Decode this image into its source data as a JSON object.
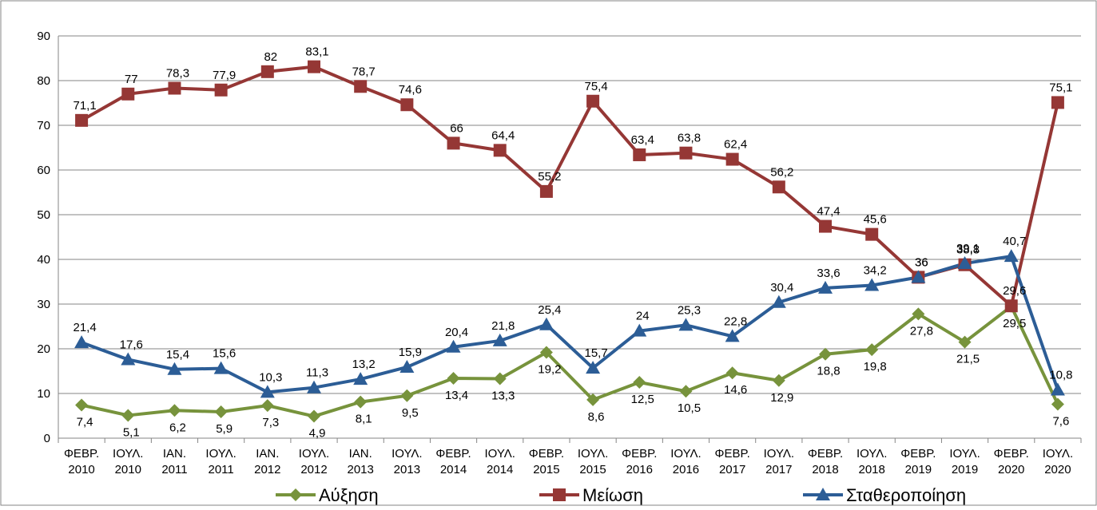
{
  "chart_data": {
    "type": "line",
    "categories": [
      [
        "ΦΕΒΡ.",
        "2010"
      ],
      [
        "ΙΟΥΛ.",
        "2010"
      ],
      [
        "ΙΑΝ.",
        "2011"
      ],
      [
        "ΙΟΥΛ.",
        "2011"
      ],
      [
        "ΙΑΝ.",
        "2012"
      ],
      [
        "ΙΟΥΛ.",
        "2012"
      ],
      [
        "ΙΑΝ.",
        "2013"
      ],
      [
        "ΙΟΥΛ.",
        "2013"
      ],
      [
        "ΦΕΒΡ.",
        "2014"
      ],
      [
        "ΙΟΥΛ.",
        "2014"
      ],
      [
        "ΦΕΒΡ.",
        "2015"
      ],
      [
        "ΙΟΥΛ.",
        "2015"
      ],
      [
        "ΦΕΒΡ.",
        "2016"
      ],
      [
        "ΙΟΥΛ.",
        "2016"
      ],
      [
        "ΦΕΒΡ.",
        "2017"
      ],
      [
        "ΙΟΥΛ.",
        "2017"
      ],
      [
        "ΦΕΒΡ.",
        "2018"
      ],
      [
        "ΙΟΥΛ.",
        "2018"
      ],
      [
        "ΦΕΒΡ.",
        "2019"
      ],
      [
        "ΙΟΥΛ.",
        "2019"
      ],
      [
        "ΦΕΒΡ.",
        "2020"
      ],
      [
        "ΙΟΥΛ.",
        "2020"
      ]
    ],
    "series": [
      {
        "name": "Αύξηση",
        "color": "#77933c",
        "marker": "diamond",
        "values": [
          7.4,
          5.1,
          6.2,
          5.9,
          7.3,
          4.9,
          8.1,
          9.5,
          13.4,
          13.3,
          19.2,
          8.6,
          12.5,
          10.5,
          14.6,
          12.9,
          18.8,
          19.8,
          27.8,
          21.5,
          29.5,
          7.6
        ],
        "value_labels": [
          "7,4",
          "5,1",
          "6,2",
          "5,9",
          "7,3",
          "4,9",
          "8,1",
          "9,5",
          "13,4",
          "13,3",
          "19,2",
          "8,6",
          "12,5",
          "10,5",
          "14,6",
          "12,9",
          "18,8",
          "19,8",
          "27,8",
          "21,5",
          "29,5",
          "7,6"
        ]
      },
      {
        "name": "Μείωση",
        "color": "#953735",
        "marker": "square",
        "values": [
          71.1,
          77,
          78.3,
          77.9,
          82,
          83.1,
          78.7,
          74.6,
          66,
          64.4,
          55.2,
          75.4,
          63.4,
          63.8,
          62.4,
          56.2,
          47.4,
          45.6,
          36,
          38.8,
          29.6,
          75.1
        ],
        "value_labels": [
          "71,1",
          "77",
          "78,3",
          "77,9",
          "82",
          "83,1",
          "78,7",
          "74,6",
          "66",
          "64,4",
          "55,2",
          "75,4",
          "63,4",
          "63,8",
          "62,4",
          "56,2",
          "47,4",
          "45,6",
          "36",
          "38,8",
          "29,6",
          "75,1"
        ]
      },
      {
        "name": "Σταθεροποίηση",
        "color": "#2c5d96",
        "marker": "triangle",
        "values": [
          21.4,
          17.6,
          15.4,
          15.6,
          10.3,
          11.3,
          13.2,
          15.9,
          20.4,
          21.8,
          25.4,
          15.7,
          24,
          25.3,
          22.8,
          30.4,
          33.6,
          34.2,
          36,
          39.1,
          40.7,
          10.8
        ],
        "value_labels": [
          "21,4",
          "17,6",
          "15,4",
          "15,6",
          "10,3",
          "11,3",
          "13,2",
          "15,9",
          "20,4",
          "21,8",
          "25,4",
          "15,7",
          "24",
          "25,3",
          "22,8",
          "30,4",
          "33,6",
          "34,2",
          "36",
          "39,1",
          "40,7",
          "10,8"
        ]
      }
    ],
    "ylim": [
      0,
      90
    ],
    "yticks": [
      0,
      10,
      20,
      30,
      40,
      50,
      60,
      70,
      80,
      90
    ],
    "grid": true
  }
}
